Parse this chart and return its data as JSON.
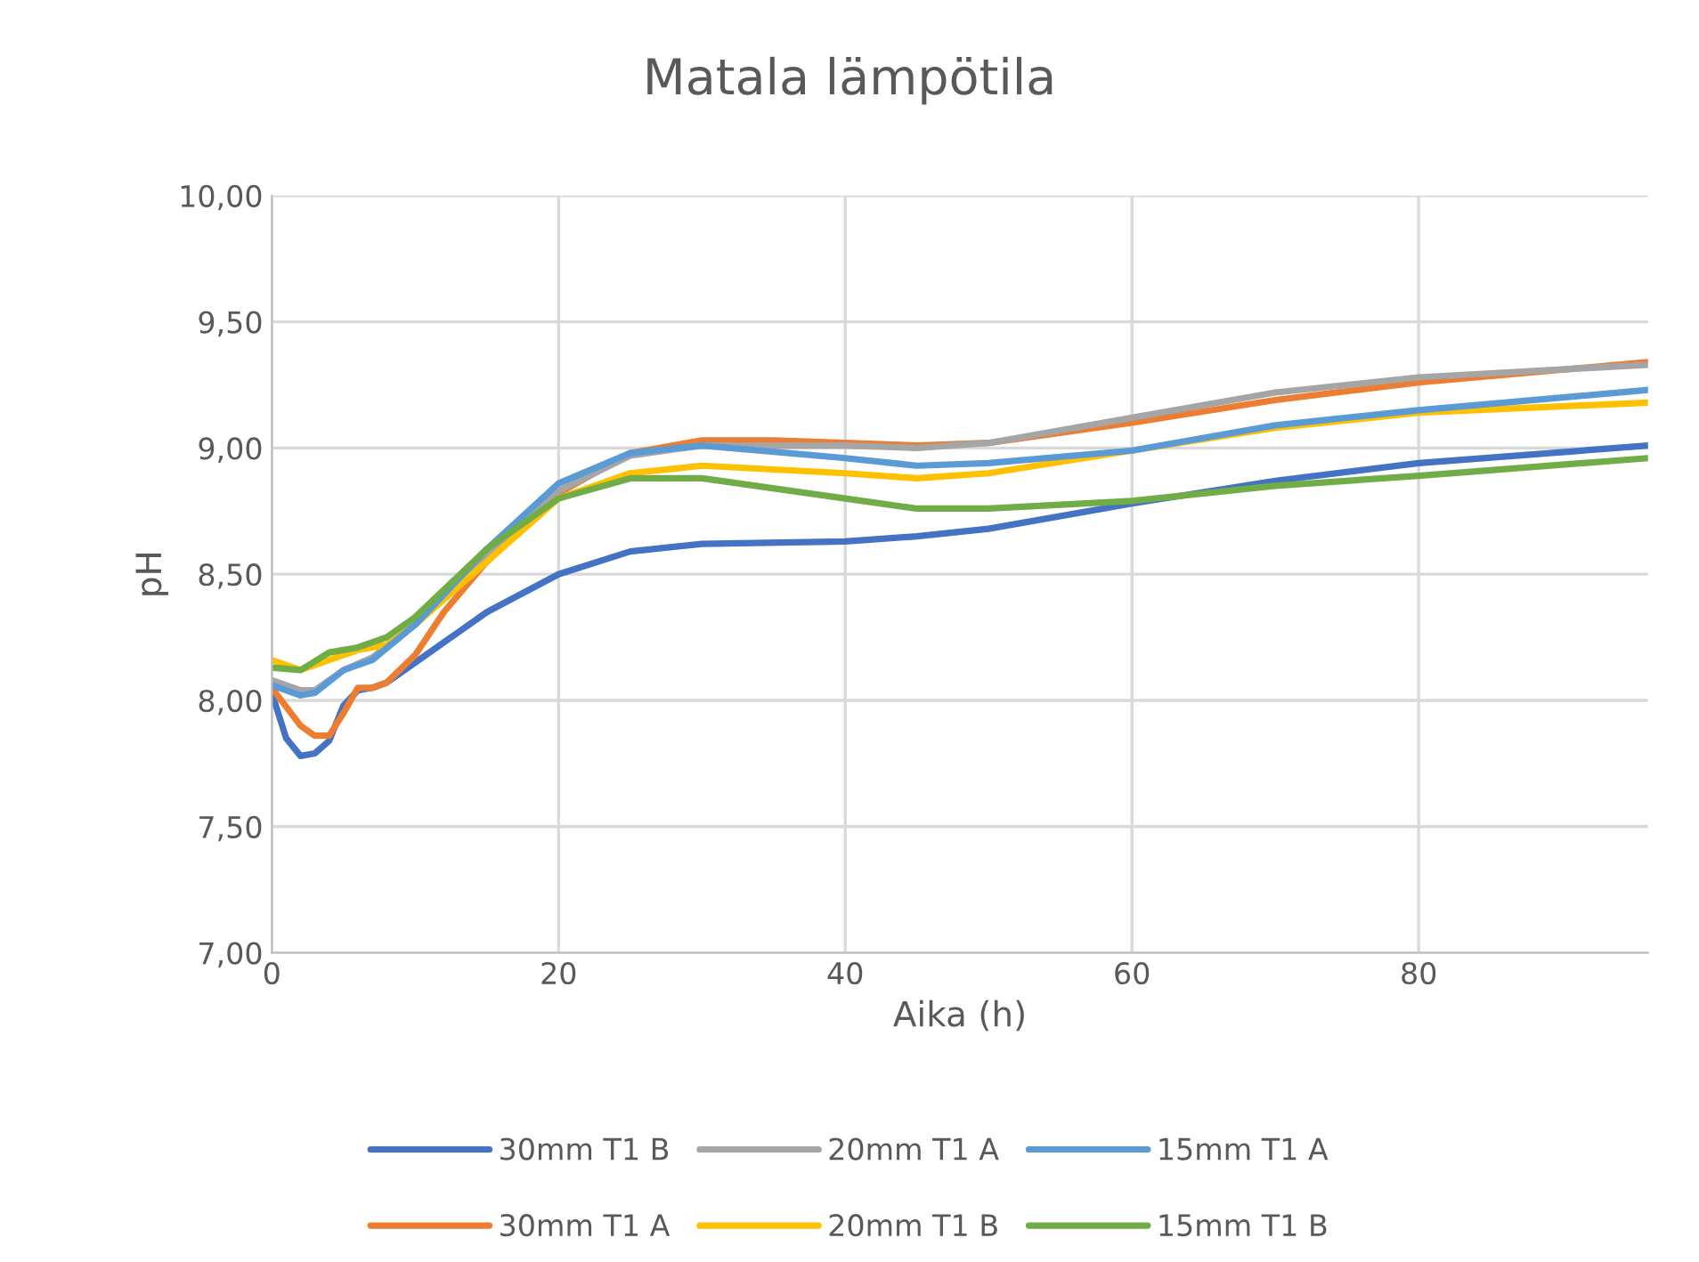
{
  "chart_data": {
    "type": "line",
    "title": "Matala lämpötila",
    "xlabel": "Aika (h)",
    "ylabel": "pH",
    "xlim": [
      0,
      96
    ],
    "xticks": [
      0,
      20,
      40,
      60,
      80
    ],
    "ylim": [
      7,
      10
    ],
    "yticks": [
      {
        "value": 7,
        "label": "7,00"
      },
      {
        "value": 7.5,
        "label": "7,50"
      },
      {
        "value": 8,
        "label": "8,00"
      },
      {
        "value": 8.5,
        "label": "8,50"
      },
      {
        "value": 9,
        "label": "9,00"
      },
      {
        "value": 9.5,
        "label": "9,50"
      },
      {
        "value": 10,
        "label": "10,00"
      }
    ],
    "grid": true,
    "legend": "bottom",
    "marker": "none",
    "line_style": "solid",
    "series": [
      {
        "name": "30mm T1 B",
        "color": "#4472c4",
        "x": [
          0,
          1,
          2,
          3,
          4,
          5,
          6,
          7,
          8,
          10,
          12,
          15,
          20,
          25,
          30,
          40,
          45,
          50,
          60,
          70,
          80,
          96
        ],
        "values": [
          8.03,
          7.85,
          7.78,
          7.79,
          7.84,
          7.98,
          8.04,
          8.05,
          8.07,
          8.15,
          8.23,
          8.35,
          8.5,
          8.59,
          8.62,
          8.63,
          8.65,
          8.68,
          8.78,
          8.87,
          8.94,
          9.01
        ]
      },
      {
        "name": "30mm T1 A",
        "color": "#ed7d31",
        "x": [
          0,
          2,
          3,
          4,
          5,
          6,
          7,
          8,
          10,
          12,
          15,
          20,
          25,
          30,
          35,
          40,
          45,
          50,
          60,
          70,
          80,
          96
        ],
        "values": [
          8.05,
          7.9,
          7.86,
          7.86,
          7.95,
          8.05,
          8.05,
          8.07,
          8.18,
          8.35,
          8.55,
          8.82,
          8.98,
          9.03,
          9.03,
          9.02,
          9.01,
          9.02,
          9.1,
          9.19,
          9.26,
          9.34
        ]
      },
      {
        "name": "20mm T1 A",
        "color": "#a5a5a5",
        "x": [
          0,
          2,
          3,
          5,
          7,
          10,
          15,
          20,
          25,
          30,
          40,
          45,
          50,
          60,
          70,
          80,
          96
        ],
        "values": [
          8.08,
          8.04,
          8.04,
          8.12,
          8.17,
          8.3,
          8.58,
          8.83,
          8.97,
          9.01,
          9.01,
          9.0,
          9.02,
          9.12,
          9.22,
          9.28,
          9.33
        ]
      },
      {
        "name": "20mm T1 B",
        "color": "#ffc000",
        "x": [
          0,
          2,
          4,
          6,
          8,
          10,
          15,
          20,
          25,
          30,
          40,
          45,
          50,
          60,
          70,
          80,
          96
        ],
        "values": [
          8.16,
          8.12,
          8.16,
          8.2,
          8.22,
          8.3,
          8.55,
          8.8,
          8.9,
          8.93,
          8.9,
          8.88,
          8.9,
          8.99,
          9.08,
          9.14,
          9.18
        ]
      },
      {
        "name": "15mm T1 A",
        "color": "#5b9bd5",
        "x": [
          0,
          2,
          3,
          5,
          7,
          10,
          15,
          20,
          25,
          30,
          40,
          45,
          50,
          60,
          70,
          80,
          96
        ],
        "values": [
          8.06,
          8.02,
          8.03,
          8.12,
          8.16,
          8.3,
          8.6,
          8.86,
          8.98,
          9.01,
          8.96,
          8.93,
          8.94,
          8.99,
          9.09,
          9.15,
          9.23
        ]
      },
      {
        "name": "15mm T1 B",
        "color": "#70ad47",
        "x": [
          0,
          2,
          4,
          6,
          8,
          10,
          15,
          20,
          25,
          30,
          40,
          45,
          50,
          60,
          70,
          80,
          96
        ],
        "values": [
          8.13,
          8.12,
          8.19,
          8.21,
          8.25,
          8.33,
          8.6,
          8.8,
          8.88,
          8.88,
          8.8,
          8.76,
          8.76,
          8.79,
          8.85,
          8.89,
          8.96
        ]
      }
    ]
  }
}
